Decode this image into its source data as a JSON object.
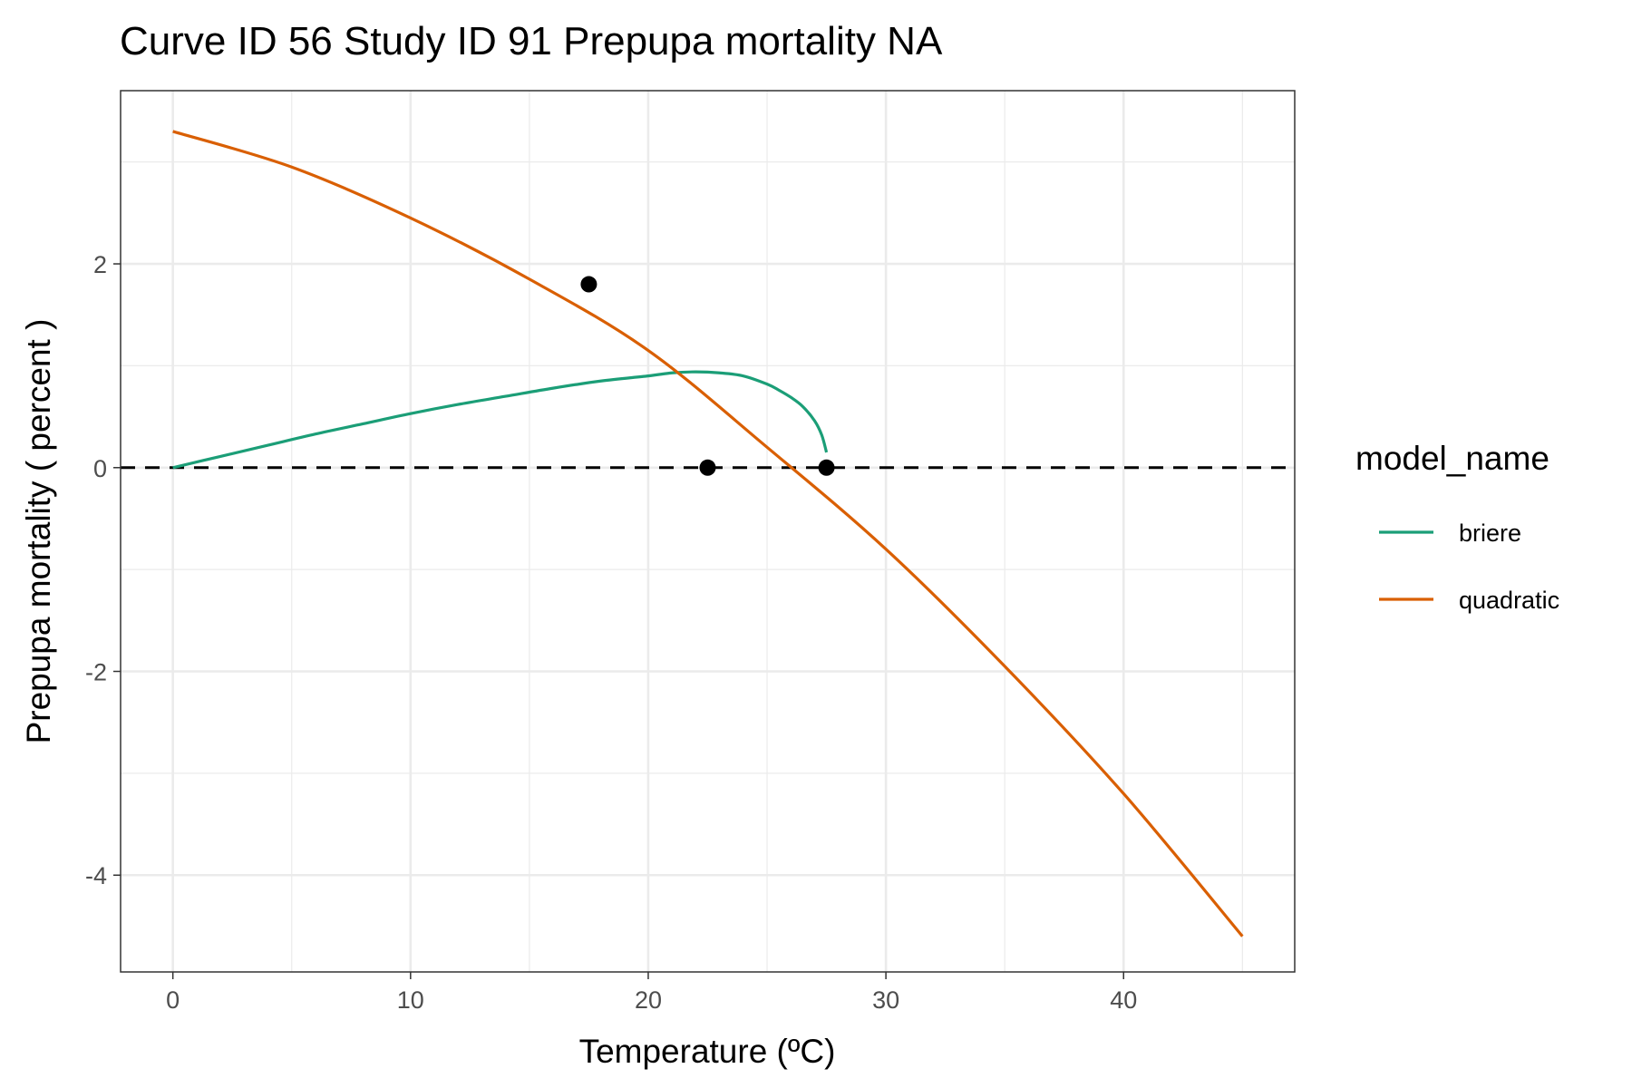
{
  "chart_data": {
    "type": "line",
    "title": "Curve ID 56 Study ID 91 Prepupa mortality NA",
    "xlabel": "Temperature (ºC)",
    "ylabel": "Prepupa mortality ( percent )",
    "xlim": [
      -2.2,
      47.2
    ],
    "ylim": [
      -4.95,
      3.7
    ],
    "x_ticks": [
      0,
      10,
      20,
      30,
      40
    ],
    "x_tick_labels": [
      "0",
      "10",
      "20",
      "30",
      "40"
    ],
    "y_ticks": [
      -4,
      -2,
      0,
      2
    ],
    "y_tick_labels": [
      "-4",
      "-2",
      "0",
      "2"
    ],
    "grid": true,
    "reference_line": {
      "y": 0,
      "style": "dashed",
      "color": "#000000"
    },
    "points": {
      "x": [
        17.5,
        22.5,
        27.5
      ],
      "y": [
        1.8,
        0.0,
        0.0
      ],
      "color": "#000000"
    },
    "series": [
      {
        "name": "briere",
        "color": "#1b9e77",
        "x": [
          0,
          2,
          4,
          6,
          8,
          10,
          12,
          14,
          16,
          18,
          20,
          21,
          22,
          23,
          24,
          25,
          25.5,
          26,
          26.5,
          27,
          27.3,
          27.5
        ],
        "y": [
          0.0,
          0.11,
          0.22,
          0.33,
          0.43,
          0.53,
          0.62,
          0.7,
          0.78,
          0.85,
          0.9,
          0.93,
          0.94,
          0.93,
          0.9,
          0.82,
          0.76,
          0.69,
          0.6,
          0.46,
          0.32,
          0.15
        ]
      },
      {
        "name": "quadratic",
        "color": "#d95f02",
        "x": [
          0,
          5,
          10,
          15,
          20,
          25,
          30,
          35,
          40,
          45
        ],
        "y": [
          3.3,
          2.95,
          2.45,
          1.85,
          1.15,
          0.2,
          -0.8,
          -1.95,
          -3.2,
          -4.6
        ]
      }
    ],
    "legend": {
      "title": "model_name",
      "entries": [
        "briere",
        "quadratic"
      ],
      "placement": "right"
    }
  }
}
